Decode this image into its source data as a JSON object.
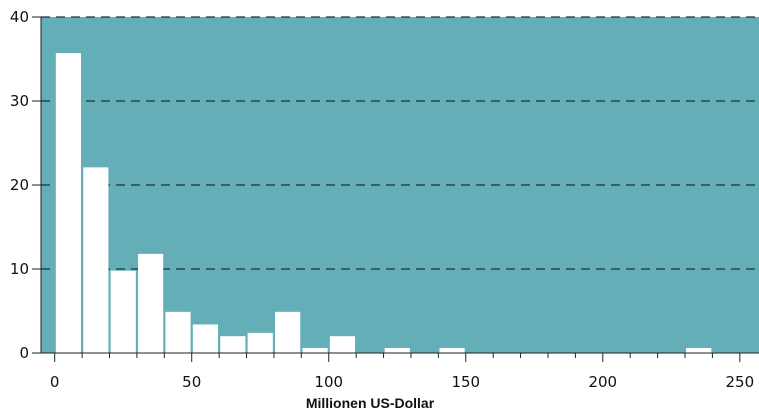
{
  "chart_data": {
    "type": "bar",
    "title": "",
    "xlabel": "Millionen US-Dollar",
    "ylabel": "",
    "xlim": [
      -5,
      257
    ],
    "ylim": [
      0,
      40
    ],
    "x_ticks": [
      0,
      50,
      100,
      150,
      200,
      250
    ],
    "x_tick_labels": [
      "0",
      "50",
      "100",
      "150",
      "200",
      "250"
    ],
    "y_ticks": [
      0,
      10,
      20,
      30,
      40
    ],
    "y_tick_labels": [
      "0",
      "10",
      "20",
      "30",
      "40"
    ],
    "grid": "horizontal dashed",
    "legend": "none",
    "bin_width": 10,
    "bins": [
      {
        "x": 5,
        "value": 35.7
      },
      {
        "x": 15,
        "value": 22.1
      },
      {
        "x": 25,
        "value": 9.8
      },
      {
        "x": 35,
        "value": 11.8
      },
      {
        "x": 45,
        "value": 4.9
      },
      {
        "x": 55,
        "value": 3.4
      },
      {
        "x": 65,
        "value": 2.0
      },
      {
        "x": 75,
        "value": 2.4
      },
      {
        "x": 85,
        "value": 4.9
      },
      {
        "x": 95,
        "value": 0.6
      },
      {
        "x": 105,
        "value": 2.0
      },
      {
        "x": 125,
        "value": 0.6
      },
      {
        "x": 145,
        "value": 0.6
      },
      {
        "x": 235,
        "value": 0.6
      }
    ],
    "colors": {
      "plot_background": "#63aeb7",
      "bar": "#ffffff",
      "gridline": "#1a3337",
      "axis": "#222222"
    }
  }
}
